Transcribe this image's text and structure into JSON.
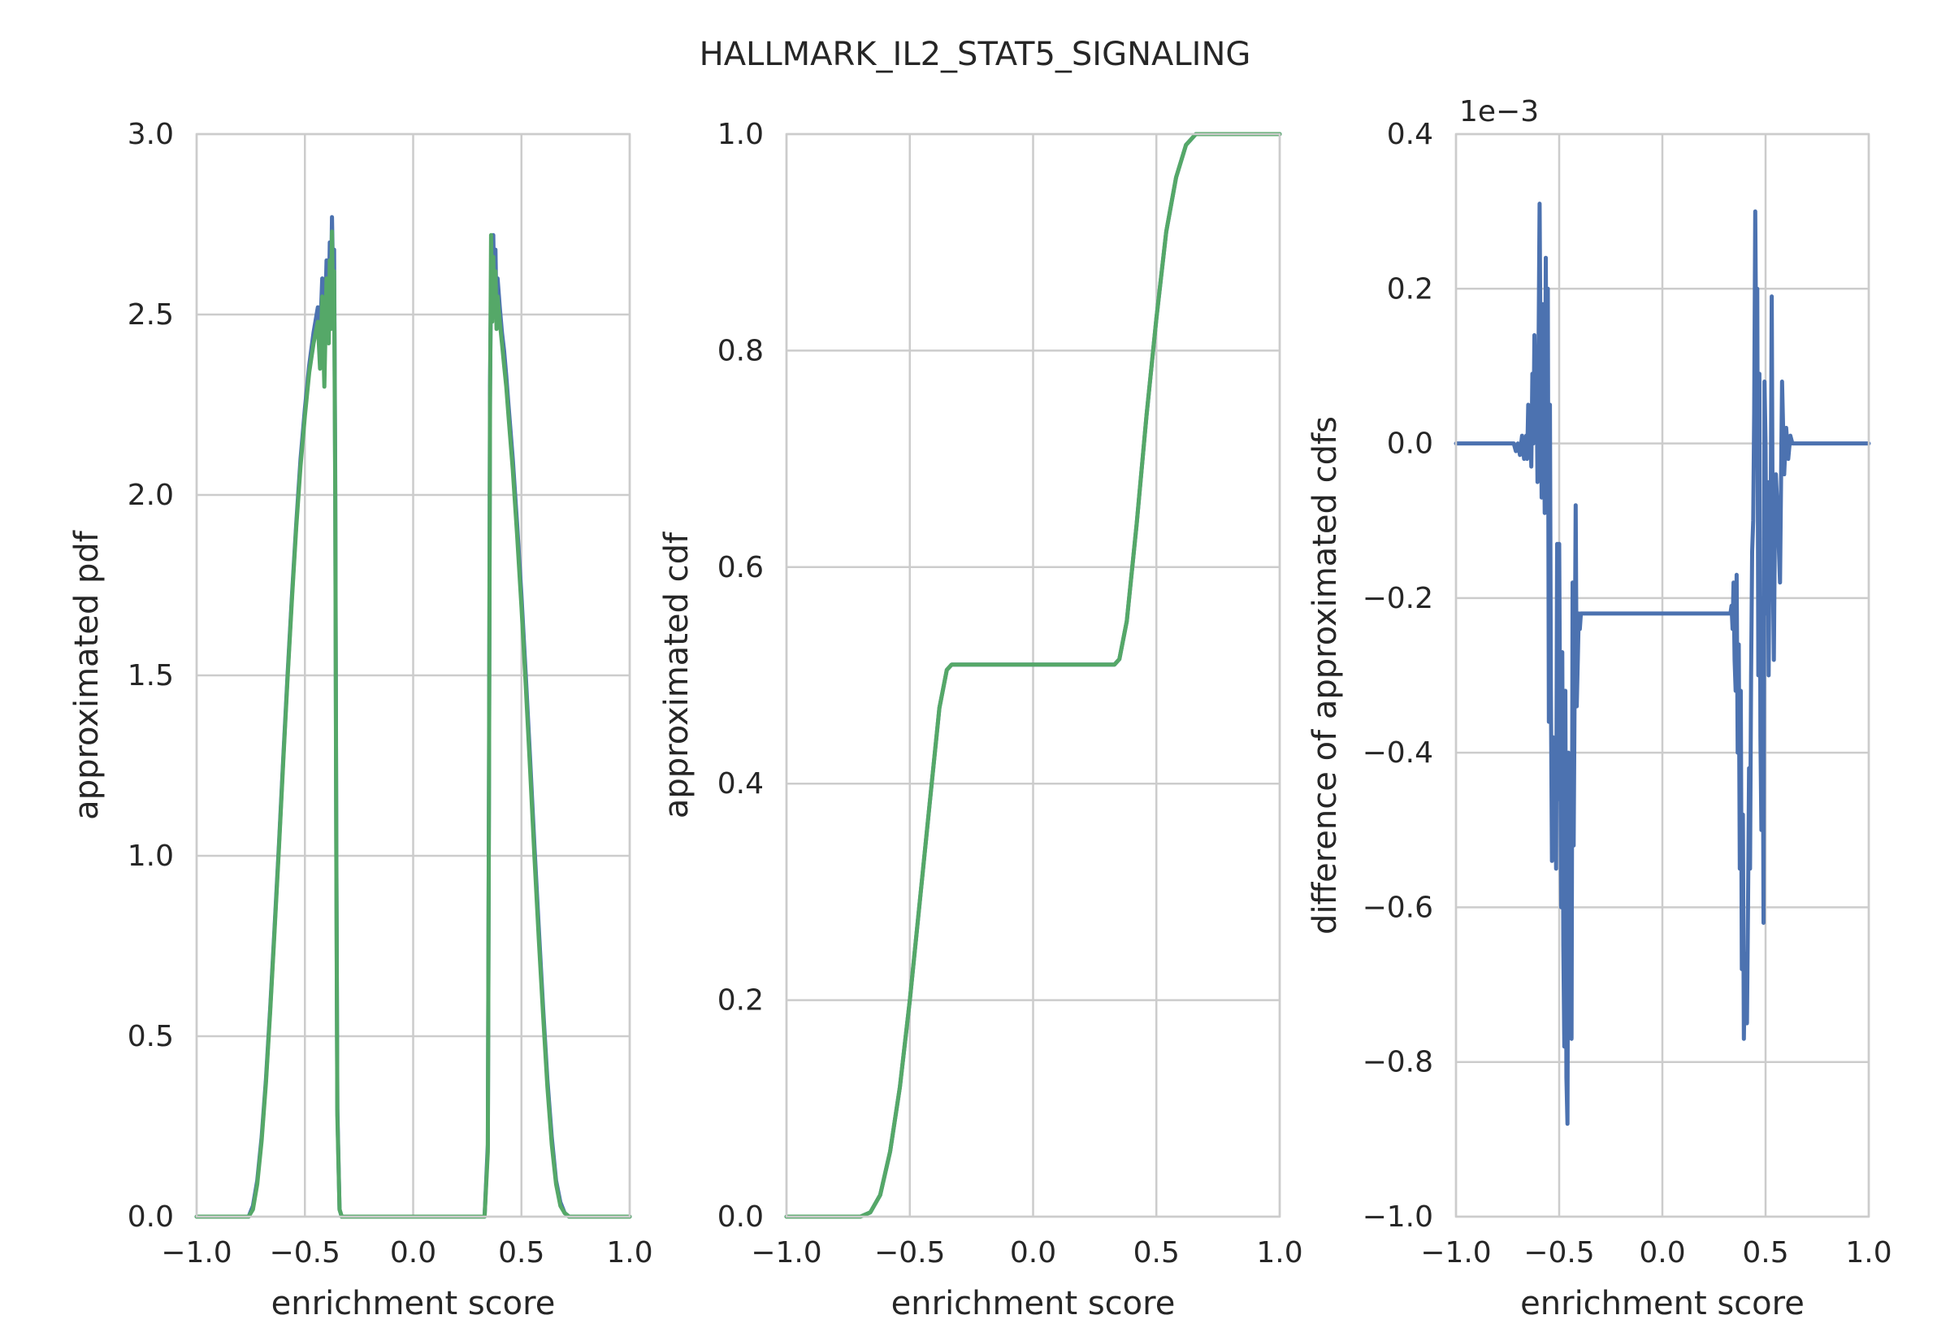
{
  "title": "HALLMARK_IL2_STAT5_SIGNALING",
  "colors": {
    "blue": "#4c72b0",
    "green": "#55a868",
    "grid": "#cccccc",
    "text": "#262626"
  },
  "chart_data": [
    {
      "type": "line",
      "xlabel": "enrichment score",
      "ylabel": "approximated pdf",
      "xlim": [
        -1.0,
        1.0
      ],
      "ylim": [
        0.0,
        3.0
      ],
      "xticks": [
        "−1.0",
        "−0.5",
        "0.0",
        "0.5",
        "1.0"
      ],
      "yticks": [
        "0.0",
        "0.5",
        "1.0",
        "1.5",
        "2.0",
        "2.5",
        "3.0"
      ],
      "grid": true,
      "series": [
        {
          "color": "#4c72b0",
          "x": [
            -1.0,
            -0.76,
            -0.74,
            -0.72,
            -0.7,
            -0.68,
            -0.66,
            -0.64,
            -0.62,
            -0.6,
            -0.58,
            -0.56,
            -0.54,
            -0.52,
            -0.5,
            -0.48,
            -0.46,
            -0.44,
            -0.43,
            -0.42,
            -0.41,
            -0.4,
            -0.39,
            -0.385,
            -0.38,
            -0.375,
            -0.37,
            -0.365,
            -0.36,
            -0.355,
            -0.35,
            -0.34,
            -0.33,
            0.33,
            0.345,
            0.35,
            0.355,
            0.36,
            0.365,
            0.37,
            0.375,
            0.38,
            0.385,
            0.39,
            0.4,
            0.41,
            0.42,
            0.43,
            0.44,
            0.46,
            0.48,
            0.5,
            0.52,
            0.54,
            0.56,
            0.58,
            0.6,
            0.62,
            0.64,
            0.66,
            0.68,
            0.7,
            0.72,
            0.74,
            0.76,
            1.0
          ],
          "y": [
            0.0,
            0.0,
            0.03,
            0.1,
            0.22,
            0.38,
            0.58,
            0.8,
            1.03,
            1.27,
            1.5,
            1.72,
            1.92,
            2.1,
            2.24,
            2.36,
            2.45,
            2.52,
            2.44,
            2.6,
            2.4,
            2.65,
            2.5,
            2.7,
            2.55,
            2.77,
            2.6,
            2.68,
            2.05,
            1.05,
            0.3,
            0.02,
            0.0,
            0.0,
            0.2,
            1.2,
            2.3,
            2.6,
            2.5,
            2.72,
            2.55,
            2.68,
            2.5,
            2.6,
            2.52,
            2.45,
            2.4,
            2.33,
            2.25,
            2.1,
            1.92,
            1.72,
            1.5,
            1.27,
            1.03,
            0.8,
            0.58,
            0.38,
            0.22,
            0.1,
            0.04,
            0.01,
            0.0,
            0.0,
            0.0,
            0.0
          ]
        },
        {
          "color": "#55a868",
          "x": [
            -1.0,
            -0.76,
            -0.74,
            -0.72,
            -0.7,
            -0.68,
            -0.66,
            -0.64,
            -0.62,
            -0.6,
            -0.58,
            -0.56,
            -0.54,
            -0.52,
            -0.5,
            -0.48,
            -0.46,
            -0.44,
            -0.43,
            -0.42,
            -0.41,
            -0.4,
            -0.39,
            -0.385,
            -0.38,
            -0.375,
            -0.37,
            -0.365,
            -0.36,
            -0.355,
            -0.35,
            -0.34,
            -0.33,
            0.33,
            0.345,
            0.35,
            0.355,
            0.36,
            0.365,
            0.37,
            0.375,
            0.38,
            0.385,
            0.39,
            0.4,
            0.41,
            0.42,
            0.43,
            0.44,
            0.46,
            0.48,
            0.5,
            0.52,
            0.54,
            0.56,
            0.58,
            0.6,
            0.62,
            0.64,
            0.66,
            0.68,
            0.7,
            0.72,
            0.74,
            0.76,
            1.0
          ],
          "y": [
            0.0,
            0.0,
            0.02,
            0.09,
            0.21,
            0.37,
            0.57,
            0.79,
            1.02,
            1.26,
            1.49,
            1.71,
            1.91,
            2.08,
            2.22,
            2.34,
            2.42,
            2.48,
            2.35,
            2.55,
            2.3,
            2.6,
            2.42,
            2.65,
            2.46,
            2.73,
            2.52,
            2.62,
            2.0,
            1.0,
            0.28,
            0.02,
            0.0,
            0.0,
            0.18,
            1.15,
            2.25,
            2.72,
            2.48,
            2.66,
            2.5,
            2.62,
            2.46,
            2.55,
            2.48,
            2.42,
            2.36,
            2.3,
            2.22,
            2.07,
            1.89,
            1.69,
            1.47,
            1.24,
            1.0,
            0.77,
            0.56,
            0.36,
            0.2,
            0.09,
            0.03,
            0.01,
            0.0,
            0.0,
            0.0,
            0.0
          ]
        }
      ]
    },
    {
      "type": "line",
      "xlabel": "enrichment score",
      "ylabel": "approximated cdf",
      "xlim": [
        -1.0,
        1.0
      ],
      "ylim": [
        0.0,
        1.0
      ],
      "xticks": [
        "−1.0",
        "−0.5",
        "0.0",
        "0.5",
        "1.0"
      ],
      "yticks": [
        "0.0",
        "0.2",
        "0.4",
        "0.6",
        "0.8",
        "1.0"
      ],
      "grid": true,
      "series": [
        {
          "color": "#4c72b0",
          "x": [
            -1.0,
            -0.7,
            -0.66,
            -0.62,
            -0.58,
            -0.54,
            -0.5,
            -0.46,
            -0.42,
            -0.38,
            -0.35,
            -0.33,
            0.33,
            0.35,
            0.38,
            0.42,
            0.46,
            0.5,
            0.54,
            0.58,
            0.62,
            0.66,
            1.0
          ],
          "y": [
            0.0,
            0.0,
            0.004,
            0.02,
            0.06,
            0.12,
            0.2,
            0.29,
            0.38,
            0.47,
            0.505,
            0.51,
            0.51,
            0.515,
            0.55,
            0.64,
            0.74,
            0.83,
            0.91,
            0.96,
            0.99,
            1.0,
            1.0
          ]
        },
        {
          "color": "#55a868",
          "x": [
            -1.0,
            -0.7,
            -0.66,
            -0.62,
            -0.58,
            -0.54,
            -0.5,
            -0.46,
            -0.42,
            -0.38,
            -0.35,
            -0.33,
            0.33,
            0.35,
            0.38,
            0.42,
            0.46,
            0.5,
            0.54,
            0.58,
            0.62,
            0.66,
            1.0
          ],
          "y": [
            0.0,
            0.0,
            0.004,
            0.02,
            0.06,
            0.12,
            0.2,
            0.29,
            0.38,
            0.47,
            0.505,
            0.51,
            0.51,
            0.515,
            0.55,
            0.64,
            0.74,
            0.83,
            0.91,
            0.96,
            0.99,
            1.0,
            1.0
          ]
        }
      ]
    },
    {
      "type": "line",
      "xlabel": "enrichment score",
      "ylabel": "difference of approximated cdfs",
      "xlim": [
        -1.0,
        1.0
      ],
      "ylim": [
        -1.0,
        0.4
      ],
      "offset_label": "1e−3",
      "xticks": [
        "−1.0",
        "−0.5",
        "0.0",
        "0.5",
        "1.0"
      ],
      "yticks": [
        "−1.0",
        "−0.8",
        "−0.6",
        "−0.4",
        "−0.2",
        "0.0",
        "0.2",
        "0.4"
      ],
      "grid": true,
      "series": [
        {
          "color": "#4c72b0",
          "x": [
            -1.0,
            -0.73,
            -0.72,
            -0.71,
            -0.7,
            -0.69,
            -0.68,
            -0.67,
            -0.66,
            -0.655,
            -0.65,
            -0.645,
            -0.64,
            -0.635,
            -0.63,
            -0.625,
            -0.62,
            -0.615,
            -0.61,
            -0.605,
            -0.6,
            -0.595,
            -0.59,
            -0.585,
            -0.58,
            -0.575,
            -0.57,
            -0.565,
            -0.56,
            -0.555,
            -0.55,
            -0.545,
            -0.54,
            -0.535,
            -0.53,
            -0.525,
            -0.52,
            -0.515,
            -0.51,
            -0.505,
            -0.5,
            -0.495,
            -0.49,
            -0.485,
            -0.48,
            -0.475,
            -0.47,
            -0.465,
            -0.46,
            -0.455,
            -0.45,
            -0.445,
            -0.44,
            -0.435,
            -0.43,
            -0.425,
            -0.42,
            -0.415,
            -0.41,
            -0.405,
            -0.4,
            -0.395,
            -0.39,
            -0.385,
            -0.38,
            -0.375,
            -0.37,
            -0.365,
            -0.36,
            -0.35,
            -0.33,
            0.33,
            0.335,
            0.34,
            0.345,
            0.35,
            0.355,
            0.36,
            0.365,
            0.37,
            0.375,
            0.38,
            0.385,
            0.39,
            0.395,
            0.4,
            0.405,
            0.41,
            0.415,
            0.42,
            0.425,
            0.43,
            0.435,
            0.44,
            0.445,
            0.45,
            0.455,
            0.46,
            0.465,
            0.47,
            0.475,
            0.48,
            0.485,
            0.49,
            0.495,
            0.5,
            0.505,
            0.51,
            0.515,
            0.52,
            0.525,
            0.53,
            0.535,
            0.54,
            0.545,
            0.55,
            0.56,
            0.57,
            0.58,
            0.59,
            0.6,
            0.61,
            0.62,
            0.63,
            0.64,
            0.65,
            0.66,
            0.67,
            0.68,
            0.7,
            1.0
          ],
          "y": [
            0.0,
            0.0,
            0.0,
            -0.01,
            0.0,
            -0.015,
            0.01,
            -0.02,
            0.01,
            -0.02,
            0.05,
            -0.01,
            0.03,
            -0.03,
            0.09,
            0.0,
            0.14,
            0.02,
            0.09,
            -0.05,
            0.12,
            0.31,
            0.1,
            -0.07,
            0.18,
            0.05,
            -0.09,
            0.24,
            -0.02,
            0.2,
            -0.36,
            0.05,
            -0.32,
            -0.54,
            -0.38,
            -0.52,
            -0.41,
            -0.55,
            -0.13,
            -0.46,
            -0.13,
            -0.4,
            -0.6,
            -0.27,
            -0.65,
            -0.78,
            -0.32,
            -0.82,
            -0.88,
            -0.4,
            -0.75,
            -0.55,
            -0.77,
            -0.18,
            -0.52,
            -0.32,
            -0.08,
            -0.34,
            -0.28,
            -0.22,
            -0.24,
            -0.22,
            -0.22,
            -0.22,
            -0.22,
            -0.22,
            -0.22,
            -0.22,
            -0.22,
            -0.22,
            -0.22,
            -0.22,
            -0.21,
            -0.24,
            -0.18,
            -0.28,
            -0.32,
            -0.17,
            -0.4,
            -0.26,
            -0.55,
            -0.32,
            -0.68,
            -0.48,
            -0.77,
            -0.66,
            -0.72,
            -0.75,
            -0.6,
            -0.42,
            -0.55,
            -0.3,
            -0.14,
            -0.1,
            0.04,
            0.3,
            0.1,
            0.2,
            -0.3,
            0.09,
            -0.38,
            -0.5,
            -0.2,
            -0.62,
            0.08,
            0.0,
            -0.22,
            -0.05,
            -0.3,
            -0.08,
            -0.1,
            0.19,
            -0.16,
            -0.28,
            -0.12,
            -0.04,
            -0.1,
            -0.18,
            0.08,
            -0.04,
            0.02,
            -0.02,
            0.01,
            0.0,
            0.0,
            0.0,
            0.0,
            0.0,
            0.0,
            0.0,
            0.0
          ]
        }
      ]
    }
  ]
}
